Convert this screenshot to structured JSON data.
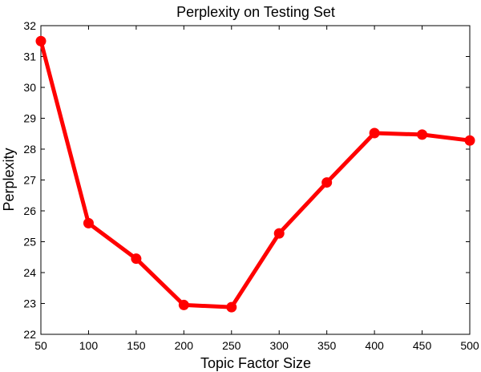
{
  "chart_data": {
    "type": "line",
    "title": "Perplexity on Testing Set",
    "xlabel": "Topic Factor Size",
    "ylabel": "Perplexity",
    "x": [
      50,
      100,
      150,
      200,
      250,
      300,
      350,
      400,
      450,
      500
    ],
    "series": [
      {
        "values": [
          31.5,
          25.6,
          24.45,
          22.95,
          22.88,
          25.27,
          26.92,
          28.52,
          28.47,
          28.28
        ],
        "color": "#ff0000",
        "marker": "circle"
      }
    ],
    "xlim": [
      50,
      500
    ],
    "ylim": [
      22,
      32
    ],
    "xticks": [
      "50",
      "100",
      "150",
      "200",
      "250",
      "300",
      "350",
      "400",
      "450",
      "500"
    ],
    "yticks": [
      "22",
      "23",
      "24",
      "25",
      "26",
      "27",
      "28",
      "29",
      "30",
      "31",
      "32"
    ],
    "grid": false,
    "legend": "none"
  }
}
